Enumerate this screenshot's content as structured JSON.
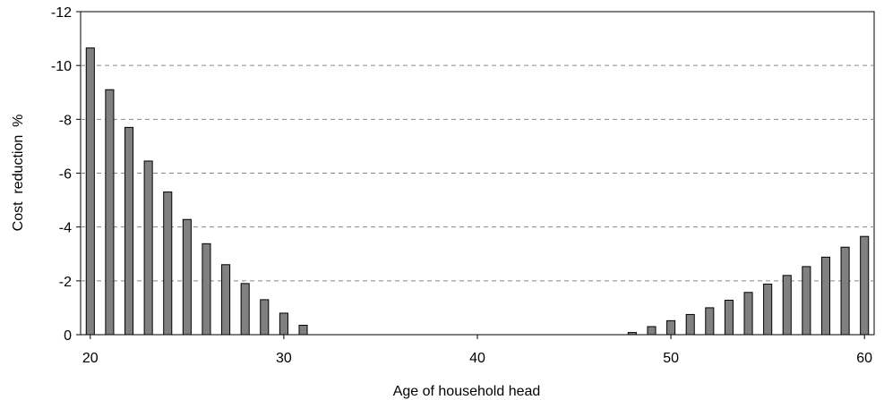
{
  "chart_data": {
    "type": "bar",
    "title": "",
    "xlabel": "Age of household head",
    "ylabel": "Cost  reduction  %",
    "ylim": [
      0,
      -12
    ],
    "y_inverted": true,
    "xlim": [
      19.5,
      60.5
    ],
    "grid": "horizontal-dashed",
    "legend": "none",
    "x_ticks": [
      20,
      30,
      40,
      50,
      60
    ],
    "y_ticks": [
      0,
      -2,
      -4,
      -6,
      -8,
      -10,
      -12
    ],
    "bar_color": "#808080",
    "bar_edge_color": "#000000",
    "categories": [
      20,
      21,
      22,
      23,
      24,
      25,
      26,
      27,
      28,
      29,
      30,
      31,
      32,
      33,
      34,
      35,
      36,
      37,
      38,
      39,
      40,
      41,
      42,
      43,
      44,
      45,
      46,
      47,
      48,
      49,
      50,
      51,
      52,
      53,
      54,
      55,
      56,
      57,
      58,
      59,
      60
    ],
    "values": [
      -10.65,
      -9.1,
      -7.7,
      -6.45,
      -5.3,
      -4.28,
      -3.38,
      -2.6,
      -1.9,
      -1.3,
      -0.8,
      -0.35,
      0,
      0,
      0,
      0,
      0,
      0,
      0,
      0,
      0,
      0,
      0,
      0,
      0,
      0,
      0,
      0,
      -0.08,
      -0.3,
      -0.52,
      -0.75,
      -1.0,
      -1.28,
      -1.57,
      -1.88,
      -2.2,
      -2.53,
      -2.88,
      -3.25,
      -3.65
    ]
  }
}
